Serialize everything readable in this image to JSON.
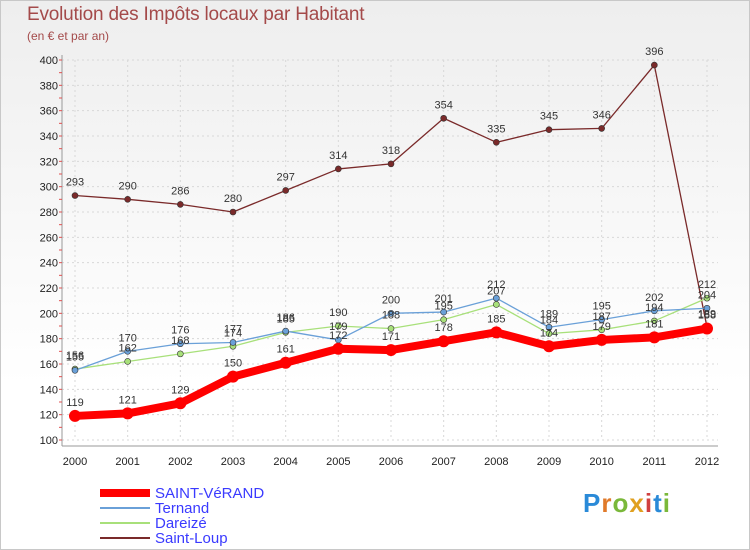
{
  "chart_data": {
    "type": "line",
    "title": "Evolution des Impôts locaux par Habitant",
    "subtitle": "(en € et par an)",
    "xlabel": "",
    "ylabel": "",
    "ylim": [
      100,
      400
    ],
    "yticks": [
      100,
      120,
      140,
      160,
      180,
      200,
      220,
      240,
      260,
      280,
      300,
      320,
      340,
      360,
      380,
      400
    ],
    "x": [
      "2000",
      "2001",
      "2002",
      "2003",
      "2004",
      "2005",
      "2006",
      "2007",
      "2008",
      "2009",
      "2010",
      "2011",
      "2012"
    ],
    "series": [
      {
        "name": "SAINT-VéRAND",
        "color": "#ff0000",
        "values": [
          119,
          121,
          129,
          150,
          161,
          172,
          171,
          178,
          185,
          174,
          179,
          181,
          188
        ]
      },
      {
        "name": "Ternand",
        "color": "#6aa0d8",
        "values": [
          155,
          170,
          176,
          177,
          186,
          179,
          200,
          201,
          212,
          189,
          195,
          202,
          204
        ]
      },
      {
        "name": "Dareizé",
        "color": "#a8e07a",
        "values": [
          156,
          162,
          168,
          174,
          185,
          190,
          188,
          195,
          207,
          184,
          187,
          194,
          212
        ]
      },
      {
        "name": "Saint-Loup",
        "color": "#7a2a2a",
        "values": [
          293,
          290,
          286,
          280,
          297,
          314,
          318,
          354,
          335,
          345,
          346,
          396,
          189
        ]
      }
    ]
  },
  "legend": {
    "text_color": "#3a3aff",
    "items": [
      "SAINT-VéRAND",
      "Ternand",
      "Dareizé",
      "Saint-Loup"
    ]
  },
  "logo": {
    "text": "Proxiti"
  }
}
